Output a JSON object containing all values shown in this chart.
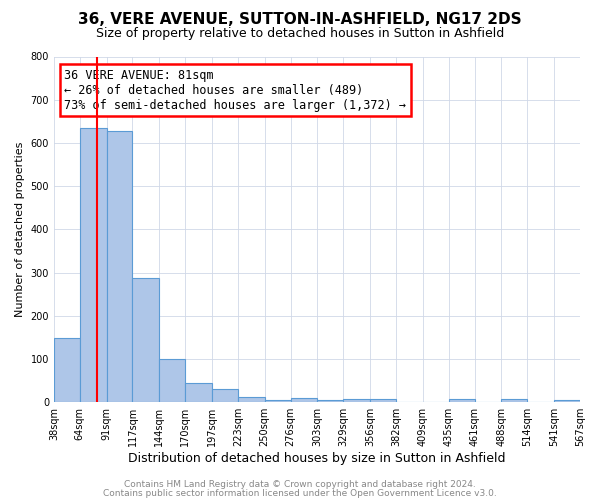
{
  "title": "36, VERE AVENUE, SUTTON-IN-ASHFIELD, NG17 2DS",
  "subtitle": "Size of property relative to detached houses in Sutton in Ashfield",
  "xlabel": "Distribution of detached houses by size in Sutton in Ashfield",
  "ylabel": "Number of detached properties",
  "bin_edges": [
    38,
    64,
    91,
    117,
    144,
    170,
    197,
    223,
    250,
    276,
    303,
    329,
    356,
    382,
    409,
    435,
    461,
    488,
    514,
    541,
    567
  ],
  "bin_counts": [
    148,
    634,
    628,
    287,
    101,
    44,
    31,
    13,
    5,
    10,
    6,
    8,
    8,
    0,
    0,
    8,
    0,
    7,
    0,
    5
  ],
  "bar_color": "#aec6e8",
  "bar_edge_color": "#5b9bd5",
  "vline_x": 81,
  "vline_color": "red",
  "ylim": [
    0,
    800
  ],
  "yticks": [
    0,
    100,
    200,
    300,
    400,
    500,
    600,
    700,
    800
  ],
  "annotation_line1": "36 VERE AVENUE: 81sqm",
  "annotation_line2": "← 26% of detached houses are smaller (489)",
  "annotation_line3": "73% of semi-detached houses are larger (1,372) →",
  "footer_line1": "Contains HM Land Registry data © Crown copyright and database right 2024.",
  "footer_line2": "Contains public sector information licensed under the Open Government Licence v3.0.",
  "background_color": "#ffffff",
  "grid_color": "#d0d8e8",
  "title_fontsize": 11,
  "subtitle_fontsize": 9,
  "ylabel_fontsize": 8,
  "xlabel_fontsize": 9,
  "tick_fontsize": 7,
  "annotation_fontsize": 8.5,
  "footer_fontsize": 6.5
}
